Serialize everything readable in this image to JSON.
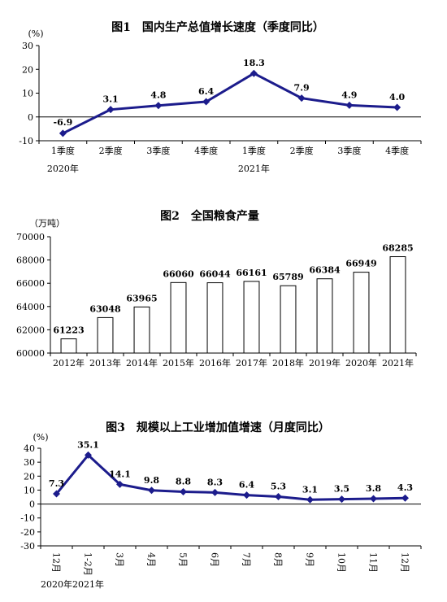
{
  "chart_data": [
    {
      "type": "line",
      "title": "图1　国内生产总值增长速度（季度同比）",
      "unit": "(%)",
      "ylim": [
        -10,
        30
      ],
      "yticks": [
        -10,
        0,
        10,
        20,
        30
      ],
      "categories": [
        "1季度",
        "2季度",
        "3季度",
        "4季度",
        "1季度",
        "2季度",
        "3季度",
        "4季度"
      ],
      "year_labels": [
        {
          "text": "2020年",
          "under": 0
        },
        {
          "text": "2021年",
          "under": 4
        }
      ],
      "values": [
        -6.9,
        3.1,
        4.8,
        6.4,
        18.3,
        7.9,
        4.9,
        4.0
      ],
      "data_labels": [
        "-6.9",
        "3.1",
        "4.8",
        "6.4",
        "18.3",
        "7.9",
        "4.9",
        "4.0"
      ],
      "color": "#1c1c8c"
    },
    {
      "type": "bar",
      "title": "图2　全国粮食产量",
      "unit": "（万吨）",
      "ylim": [
        60000,
        70000
      ],
      "yticks": [
        60000,
        62000,
        64000,
        66000,
        68000,
        70000
      ],
      "categories": [
        "2012年",
        "2013年",
        "2014年",
        "2015年",
        "2016年",
        "2017年",
        "2018年",
        "2019年",
        "2020年",
        "2021年"
      ],
      "values": [
        61223,
        63048,
        63965,
        66060,
        66044,
        66161,
        65789,
        66384,
        66949,
        68285
      ],
      "data_labels": [
        "61223",
        "63048",
        "63965",
        "66060",
        "66044",
        "66161",
        "65789",
        "66384",
        "66949",
        "68285"
      ]
    },
    {
      "type": "line",
      "title": "图3　规模以上工业增加值增速（月度同比）",
      "unit": "(%)",
      "ylim": [
        -30,
        40
      ],
      "yticks": [
        -30,
        -20,
        -10,
        0,
        10,
        20,
        30,
        40
      ],
      "categories": [
        "12月",
        "1-2月",
        "3月",
        "4月",
        "5月",
        "6月",
        "7月",
        "8月",
        "9月",
        "10月",
        "11月",
        "12月"
      ],
      "year_labels": [
        {
          "text": "2020年",
          "under": 0
        },
        {
          "text": "2021年",
          "under": 1
        }
      ],
      "values": [
        7.3,
        35.1,
        14.1,
        9.8,
        8.8,
        8.3,
        6.4,
        5.3,
        3.1,
        3.5,
        3.8,
        4.3
      ],
      "data_labels": [
        "7.3",
        "35.1",
        "14.1",
        "9.8",
        "8.8",
        "8.3",
        "6.4",
        "5.3",
        "3.1",
        "3.5",
        "3.8",
        "4.3"
      ],
      "color": "#1c1c8c"
    }
  ]
}
